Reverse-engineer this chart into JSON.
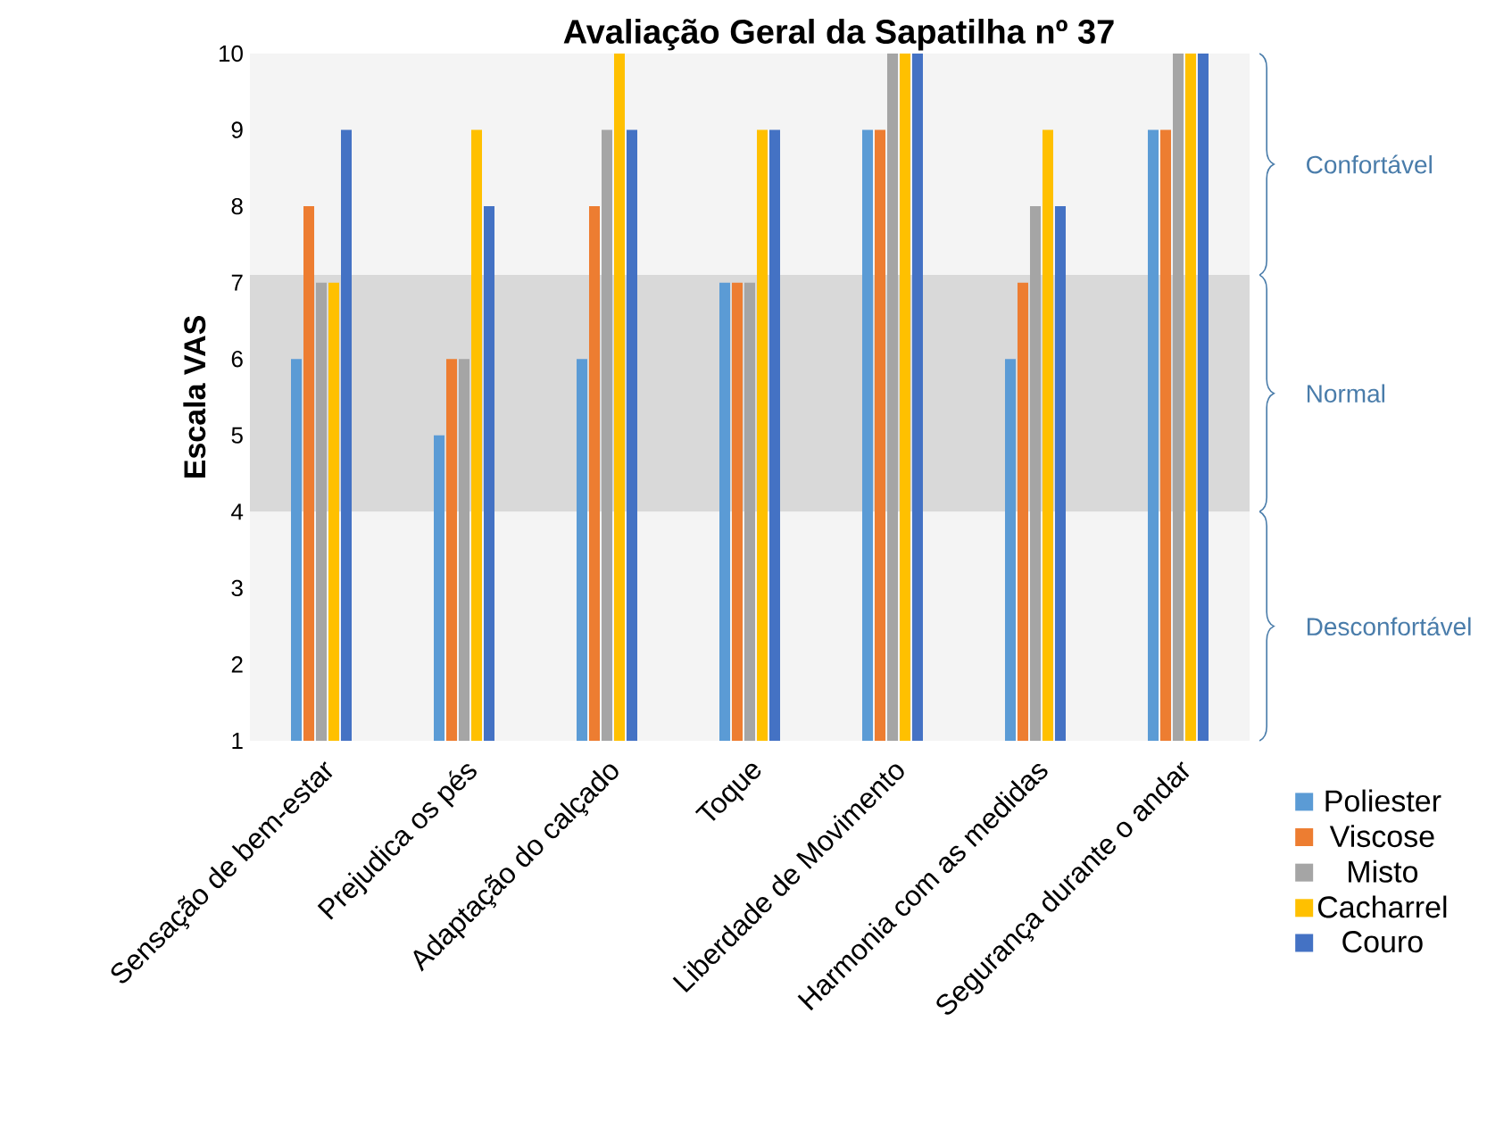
{
  "chart_data": {
    "type": "bar",
    "title": "Avaliação Geral da Sapatilha nº 37",
    "ylabel": "Escala VAS",
    "categories": [
      "Sensação de bem-estar",
      "Prejudica os pés",
      "Adaptação do calçado",
      "Toque",
      "Liberdade de Movimento",
      "Harmonia com as medidas",
      "Segurança durante o andar"
    ],
    "series": [
      {
        "name": "Poliester",
        "color": "#5b9bd5",
        "values": [
          6,
          5,
          6,
          7,
          9,
          6,
          9
        ]
      },
      {
        "name": "Viscose",
        "color": "#ed7d31",
        "values": [
          8,
          6,
          8,
          7,
          9,
          7,
          9
        ]
      },
      {
        "name": "Misto",
        "color": "#a5a5a5",
        "values": [
          7,
          6,
          9,
          7,
          10,
          8,
          10
        ]
      },
      {
        "name": "Cacharrel",
        "color": "#ffc000",
        "values": [
          7,
          9,
          10,
          9,
          10,
          9,
          10
        ]
      },
      {
        "name": "Couro",
        "color": "#4472c4",
        "values": [
          9,
          8,
          9,
          9,
          10,
          8,
          10
        ]
      }
    ],
    "ylim": [
      1,
      10
    ],
    "yticks": [
      1,
      2,
      3,
      4,
      5,
      6,
      7,
      8,
      9,
      10
    ],
    "grid": false,
    "legend": "bottom right",
    "bands": [
      {
        "axis": "y",
        "from": 7.1,
        "to": 10,
        "label": "Confortável",
        "color": "#f4f4f4"
      },
      {
        "axis": "y",
        "from": 4,
        "to": 7.1,
        "label": "Normal",
        "color": "#d9d9d9"
      },
      {
        "axis": "y",
        "from": 1,
        "to": 4,
        "label": "Desconfortável",
        "color": "#f4f4f4"
      }
    ]
  }
}
